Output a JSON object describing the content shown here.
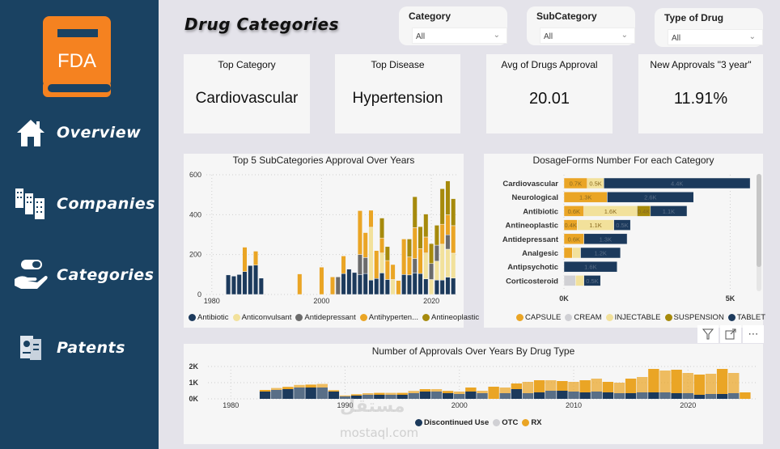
{
  "sidebar": {
    "logo_text": "FDA",
    "items": [
      {
        "label": "Overview",
        "icon": "home-icon"
      },
      {
        "label": "Companies",
        "icon": "buildings-icon"
      },
      {
        "label": "Categories",
        "icon": "pill-hand-icon"
      },
      {
        "label": "Patents",
        "icon": "certificate-icon"
      }
    ]
  },
  "header": {
    "title": "Drug Categories"
  },
  "slicers": [
    {
      "title": "Category",
      "value": "All"
    },
    {
      "title": "SubCategory",
      "value": "All"
    },
    {
      "title": "Type of Drug",
      "value": "All"
    }
  ],
  "cards": [
    {
      "title": "Top Category",
      "value": "Cardiovascular"
    },
    {
      "title": "Top Disease",
      "value": "Hypertension"
    },
    {
      "title": "Avg of Drugs Approval",
      "value": "20.01"
    },
    {
      "title": "New Approvals \"3 year\"",
      "value": "11.91%"
    }
  ],
  "visual_tools": {
    "filter": "filter-icon",
    "focus": "focus-mode-icon",
    "more": "more-options-icon"
  },
  "watermark": {
    "arabic": "مستقل",
    "latin": "mostaql.com"
  },
  "colors": {
    "navy": "#1c3a5c",
    "light_yellow": "#f2e19b",
    "gray": "#6b6b6b",
    "orange": "#eaa525",
    "olive": "#a68a0c",
    "cream": "#d0d0d4",
    "sidebar": "#1a4262"
  },
  "chart_data": [
    {
      "type": "bar",
      "stacked": true,
      "title": "Top 5 SubCategories Approval Over Years",
      "xlabel": "",
      "ylabel": "",
      "xlim": [
        1979,
        2025
      ],
      "ylim": [
        0,
        600
      ],
      "yticks": [
        0,
        200,
        400,
        600
      ],
      "xticks": [
        1980,
        2000,
        2020
      ],
      "grid": true,
      "legend_position": "bottom",
      "series_names": [
        "Antibiotic",
        "Anticonvulsant",
        "Antidepressant",
        "Antihyperten...",
        "Antineoplastic"
      ],
      "series_colors": [
        "#1c3a5c",
        "#f2e19b",
        "#6b6b6b",
        "#eaa525",
        "#a68a0c"
      ],
      "x": [
        1983,
        1984,
        1985,
        1986,
        1987,
        1988,
        1989,
        1996,
        2000,
        2002,
        2003,
        2004,
        2005,
        2006,
        2007,
        2008,
        2009,
        2010,
        2011,
        2012,
        2013,
        2014,
        2015,
        2016,
        2017,
        2018,
        2019,
        2020,
        2021,
        2022,
        2023,
        2024
      ],
      "series": [
        {
          "name": "Antibiotic",
          "values": [
            98,
            92,
            100,
            115,
            145,
            147,
            82,
            0,
            0,
            0,
            0,
            105,
            127,
            110,
            100,
            105,
            72,
            80,
            108,
            75,
            0,
            0,
            100,
            98,
            108,
            105,
            78,
            0,
            72,
            72,
            87,
            82
          ]
        },
        {
          "name": "Anticonvulsant",
          "values": [
            0,
            0,
            0,
            0,
            0,
            0,
            0,
            0,
            0,
            0,
            0,
            0,
            0,
            0,
            0,
            0,
            265,
            0,
            100,
            0,
            75,
            0,
            0,
            0,
            0,
            0,
            130,
            75,
            95,
            180,
            140,
            125
          ]
        },
        {
          "name": "Antidepressant",
          "values": [
            0,
            0,
            0,
            0,
            0,
            0,
            0,
            0,
            0,
            0,
            88,
            0,
            0,
            0,
            100,
            80,
            0,
            0,
            0,
            0,
            0,
            0,
            0,
            0,
            72,
            0,
            0,
            80,
            80,
            0,
            72,
            0
          ]
        },
        {
          "name": "Antihyperten...",
          "values": [
            0,
            0,
            0,
            122,
            0,
            70,
            0,
            103,
            137,
            88,
            0,
            88,
            0,
            0,
            220,
            125,
            85,
            140,
            75,
            95,
            75,
            70,
            178,
            90,
            155,
            125,
            80,
            0,
            0,
            100,
            100,
            138
          ]
        },
        {
          "name": "Antineoplastic",
          "values": [
            0,
            0,
            0,
            0,
            0,
            0,
            0,
            0,
            0,
            0,
            0,
            0,
            0,
            0,
            0,
            0,
            0,
            0,
            100,
            70,
            0,
            0,
            0,
            90,
            155,
            110,
            115,
            100,
            100,
            178,
            170,
            135
          ]
        }
      ]
    },
    {
      "type": "bar",
      "orientation": "horizontal",
      "stacked": true,
      "title": "DosageForms Number For each Category",
      "xlim": [
        0,
        5500
      ],
      "xticks": [
        "0K",
        "5K"
      ],
      "grid": true,
      "legend_position": "bottom",
      "categories": [
        "Cardiovascular",
        "Neurological",
        "Antibiotic",
        "Antineoplastic",
        "Antidepressant",
        "Analgesic",
        "Antipsychotic",
        "Corticosteroid"
      ],
      "series_colors": [
        "#eaa525",
        "#d0d0d4",
        "#f2e19b",
        "#a68a0c",
        "#1c3a5c"
      ],
      "series": [
        {
          "name": "CAPSULE",
          "values": [
            700,
            1300,
            600,
            400,
            600,
            250,
            0,
            0
          ],
          "labels": [
            "0.7K",
            "1.3K",
            "0.6K",
            "0.4K",
            "0.6K",
            "",
            "",
            ""
          ]
        },
        {
          "name": "CREAM",
          "values": [
            0,
            0,
            0,
            0,
            0,
            0,
            0,
            350
          ],
          "labels": [
            "",
            "",
            "",
            "",
            "",
            "",
            "",
            ""
          ]
        },
        {
          "name": "INJECTABLE",
          "values": [
            500,
            0,
            1600,
            1100,
            0,
            250,
            0,
            250
          ],
          "labels": [
            "0.5K",
            "",
            "1.6K",
            "1.1K",
            "",
            "",
            "",
            ""
          ]
        },
        {
          "name": "SUSPENSION",
          "values": [
            0,
            0,
            400,
            0,
            0,
            0,
            0,
            0
          ],
          "labels": [
            "",
            "",
            "0.4K",
            "",
            "",
            "",
            "",
            ""
          ]
        },
        {
          "name": "TABLET",
          "values": [
            4400,
            2600,
            1100,
            500,
            1300,
            1200,
            1600,
            500
          ],
          "labels": [
            "4.4K",
            "2.6K",
            "1.1K",
            "0.5K",
            "1.3K",
            "1.2K",
            "1.6K",
            "0.5K"
          ]
        }
      ]
    },
    {
      "type": "area",
      "stacked": true,
      "title": "Number of Approvals Over Years By Drug Type",
      "xlim": [
        1978,
        2026
      ],
      "ylim": [
        0,
        2000
      ],
      "yticks": [
        "0K",
        "1K",
        "2K"
      ],
      "xticks": [
        1980,
        1990,
        2000,
        2010,
        2020
      ],
      "grid": true,
      "legend_position": "bottom",
      "series_colors": [
        "#1c3a5c",
        "#d0d0d4",
        "#eaa525"
      ],
      "x": [
        1983,
        1984,
        1985,
        1986,
        1987,
        1988,
        1989,
        1990,
        1991,
        1992,
        1993,
        1994,
        1995,
        1996,
        1997,
        1998,
        1999,
        2000,
        2001,
        2002,
        2003,
        2004,
        2005,
        2006,
        2007,
        2008,
        2009,
        2010,
        2011,
        2012,
        2013,
        2014,
        2015,
        2016,
        2017,
        2018,
        2019,
        2020,
        2021,
        2022,
        2023,
        2024,
        2025
      ],
      "series": [
        {
          "name": "Discontinued Use",
          "values": [
            450,
            550,
            600,
            700,
            700,
            700,
            450,
            150,
            200,
            250,
            250,
            250,
            250,
            350,
            450,
            450,
            350,
            300,
            450,
            350,
            0,
            350,
            600,
            350,
            400,
            500,
            500,
            450,
            400,
            450,
            400,
            350,
            350,
            400,
            400,
            400,
            350,
            350,
            250,
            300,
            300,
            350,
            0
          ]
        },
        {
          "name": "OTC",
          "values": [
            0,
            0,
            0,
            0,
            0,
            0,
            0,
            0,
            0,
            0,
            0,
            0,
            0,
            0,
            0,
            0,
            0,
            0,
            0,
            0,
            0,
            0,
            0,
            0,
            0,
            0,
            0,
            0,
            0,
            0,
            0,
            0,
            0,
            0,
            0,
            0,
            0,
            0,
            0,
            0,
            0,
            0,
            0
          ]
        },
        {
          "name": "RX",
          "values": [
            100,
            120,
            140,
            160,
            180,
            220,
            80,
            60,
            80,
            100,
            120,
            120,
            120,
            140,
            150,
            150,
            140,
            150,
            250,
            150,
            750,
            350,
            350,
            700,
            750,
            650,
            600,
            600,
            750,
            800,
            650,
            650,
            900,
            950,
            1450,
            1350,
            1450,
            1250,
            1250,
            1250,
            1550,
            1250,
            400
          ]
        }
      ]
    }
  ]
}
